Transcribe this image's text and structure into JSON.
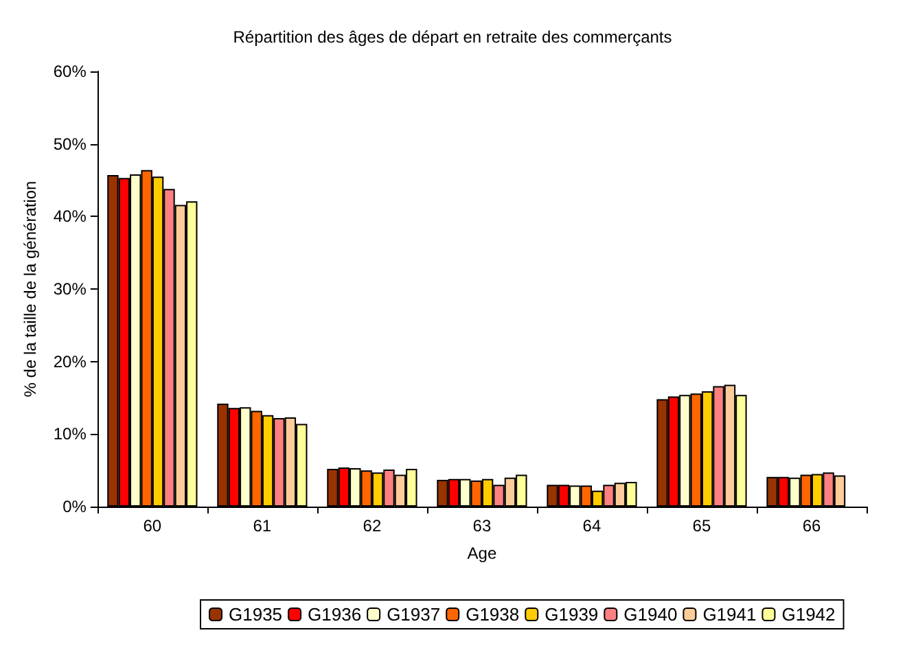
{
  "chart_data": {
    "type": "bar",
    "title": "Répartition des âges de départ en retraite des commerçants",
    "xlabel": "Age",
    "ylabel": "% de la taille de la génération",
    "categories": [
      "60",
      "61",
      "62",
      "63",
      "64",
      "65",
      "66"
    ],
    "series": [
      {
        "name": "G1935",
        "color": "#993300",
        "values": [
          45.7,
          14.2,
          5.2,
          3.7,
          3.0,
          14.8,
          4.1
        ]
      },
      {
        "name": "G1936",
        "color": "#ff0000",
        "values": [
          45.3,
          13.6,
          5.4,
          3.8,
          3.0,
          15.2,
          4.1
        ]
      },
      {
        "name": "G1937",
        "color": "#ffffcc",
        "values": [
          45.8,
          13.7,
          5.3,
          3.8,
          2.9,
          15.4,
          4.0
        ]
      },
      {
        "name": "G1938",
        "color": "#ff6600",
        "values": [
          46.4,
          13.2,
          5.0,
          3.6,
          2.9,
          15.6,
          4.4
        ]
      },
      {
        "name": "G1939",
        "color": "#ffcc00",
        "values": [
          45.5,
          12.6,
          4.7,
          3.8,
          2.2,
          15.9,
          4.5
        ]
      },
      {
        "name": "G1940",
        "color": "#ff8080",
        "values": [
          43.8,
          12.2,
          5.1,
          3.0,
          3.0,
          16.6,
          4.7
        ]
      },
      {
        "name": "G1941",
        "color": "#ffcc99",
        "values": [
          41.6,
          12.3,
          4.4,
          4.0,
          3.3,
          16.8,
          4.3
        ]
      },
      {
        "name": "G1942",
        "color": "#ffff99",
        "values": [
          42.1,
          11.4,
          5.2,
          4.4,
          3.4,
          15.4,
          null
        ]
      }
    ],
    "ylim": [
      0,
      60
    ],
    "yticks": [
      {
        "value": 0,
        "label": "0%"
      },
      {
        "value": 10,
        "label": "10%"
      },
      {
        "value": 20,
        "label": "20%"
      },
      {
        "value": 30,
        "label": "30%"
      },
      {
        "value": 40,
        "label": "40%"
      },
      {
        "value": 50,
        "label": "50%"
      },
      {
        "value": 60,
        "label": "60%"
      }
    ],
    "grid": false,
    "legend": "bottom"
  }
}
